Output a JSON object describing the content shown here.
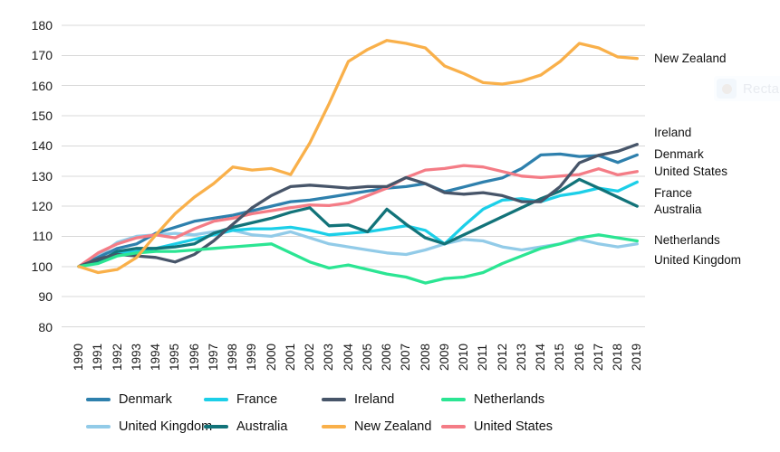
{
  "chart_data": {
    "type": "line",
    "x": [
      1990,
      1991,
      1992,
      1993,
      1994,
      1995,
      1996,
      1997,
      1998,
      1999,
      2000,
      2001,
      2002,
      2003,
      2004,
      2005,
      2006,
      2007,
      2008,
      2009,
      2010,
      2011,
      2012,
      2013,
      2014,
      2015,
      2016,
      2017,
      2018,
      2019
    ],
    "series": [
      {
        "name": "Denmark",
        "color": "#2E80AD",
        "values": [
          100,
          103,
          106,
          107.5,
          111,
          113,
          115,
          116,
          117,
          118.5,
          120,
          121.5,
          122,
          123,
          124,
          125,
          126,
          126.5,
          127.5,
          124.8,
          126.4,
          128,
          129.4,
          132.5,
          137,
          137.3,
          136.5,
          136.8,
          134.5,
          137
        ]
      },
      {
        "name": "France",
        "color": "#1CCFE8",
        "values": [
          100,
          102,
          104.5,
          105,
          106,
          107.5,
          109,
          110.5,
          112,
          112.5,
          112.5,
          113,
          112,
          110.5,
          111,
          111.5,
          112.5,
          113.5,
          112,
          107.5,
          113.5,
          119,
          122,
          122.5,
          121.5,
          123.5,
          124.5,
          126,
          125,
          128
        ]
      },
      {
        "name": "Ireland",
        "color": "#475569",
        "values": [
          100,
          102.5,
          104,
          103.5,
          103,
          101.5,
          104,
          108.5,
          114,
          119.5,
          123.5,
          126.5,
          127,
          126.5,
          126,
          126.5,
          126.5,
          129.5,
          127.5,
          124.5,
          124,
          124.5,
          123.5,
          121.5,
          121.5,
          126.5,
          134.4,
          136.9,
          138.2,
          140.5
        ]
      },
      {
        "name": "Netherlands",
        "color": "#2BE593",
        "values": [
          100,
          101,
          103.5,
          104.5,
          105,
          105,
          105.5,
          106,
          106.5,
          107,
          107.5,
          104.5,
          101.5,
          99.5,
          100.5,
          99,
          97.5,
          96.5,
          94.5,
          96,
          96.5,
          98,
          101,
          103.5,
          106,
          107.5,
          109.5,
          110.5,
          109.5,
          108.5
        ]
      },
      {
        "name": "United Kingdom",
        "color": "#92CBE8",
        "values": [
          100,
          103.5,
          108,
          110,
          110.5,
          111,
          110.5,
          111.5,
          112,
          110.5,
          110,
          111.5,
          109.5,
          107.5,
          106.5,
          105.5,
          104.5,
          104,
          105.5,
          107.5,
          109,
          108.5,
          106.5,
          105.5,
          106.5,
          107.5,
          109,
          107.5,
          106.5,
          107.5
        ]
      },
      {
        "name": "Australia",
        "color": "#127379",
        "values": [
          100,
          101.5,
          105,
          106,
          106,
          106.5,
          107.5,
          111,
          113,
          114.5,
          116,
          118,
          119.5,
          113.5,
          113.8,
          111.5,
          119,
          114,
          109.5,
          107.5,
          110.5,
          113.5,
          116.5,
          119.5,
          122.5,
          125,
          128.9,
          126,
          123,
          120
        ]
      },
      {
        "name": "New Zealand",
        "color": "#F9B04A",
        "values": [
          100,
          98,
          99,
          103,
          110.5,
          117.5,
          123,
          127.5,
          133,
          132,
          132.5,
          130.5,
          141,
          154,
          168,
          172,
          175,
          174,
          172.5,
          166.5,
          164,
          161,
          160.5,
          161.5,
          163.5,
          168,
          174,
          172.5,
          169.5,
          169
        ]
      },
      {
        "name": "United States",
        "color": "#F47C86",
        "values": [
          100,
          104.5,
          107.5,
          109.5,
          110.5,
          109.5,
          112.5,
          115,
          116,
          117.5,
          118.5,
          119.5,
          120.4,
          120.2,
          121.1,
          123.5,
          126,
          129.5,
          132,
          132.5,
          133.5,
          133,
          131.5,
          130,
          129.5,
          130,
          130.5,
          132.4,
          130.4,
          131.5
        ]
      }
    ],
    "yticks": [
      80,
      90,
      100,
      110,
      120,
      130,
      140,
      150,
      160,
      170,
      180
    ],
    "ylim": [
      80,
      180
    ],
    "grid": "horizontal",
    "legend_position": "bottom",
    "right_labels": [
      "New Zealand",
      "Ireland",
      "Denmark",
      "United States",
      "France",
      "Australia",
      "Netherlands",
      "United Kingdom"
    ],
    "title": "",
    "xlabel": "",
    "ylabel": ""
  },
  "legend": {
    "rows": [
      [
        "Denmark",
        "France",
        "Ireland",
        "Netherlands"
      ],
      [
        "United Kingdom",
        "Australia",
        "New Zealand",
        "United States"
      ]
    ]
  },
  "watermark": {
    "text": "Recta"
  }
}
